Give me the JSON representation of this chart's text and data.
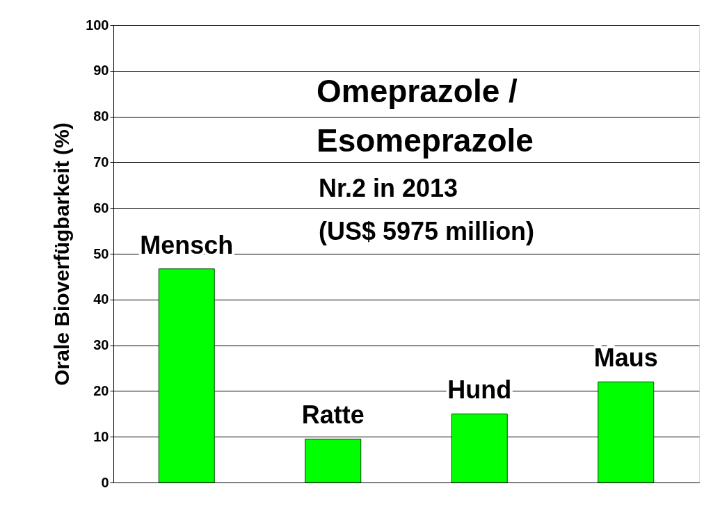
{
  "chart_data": {
    "type": "bar",
    "title": "Omeprazole / Esomeprazole",
    "ylabel": "Orale Bioverfügbarkeit (%)",
    "categories": [
      "Mensch",
      "Ratte",
      "Hund",
      "Maus"
    ],
    "values": [
      46.7,
      9.5,
      15,
      22
    ],
    "color": "#00ff00",
    "ylim": [
      0,
      100
    ],
    "yticks": [
      0,
      10,
      20,
      30,
      40,
      50,
      60,
      70,
      80,
      90,
      100
    ],
    "grid": "y",
    "tick_labels": "y",
    "annotations": [
      "Nr.2 in 2013",
      "(US$ 5975 million)"
    ]
  }
}
